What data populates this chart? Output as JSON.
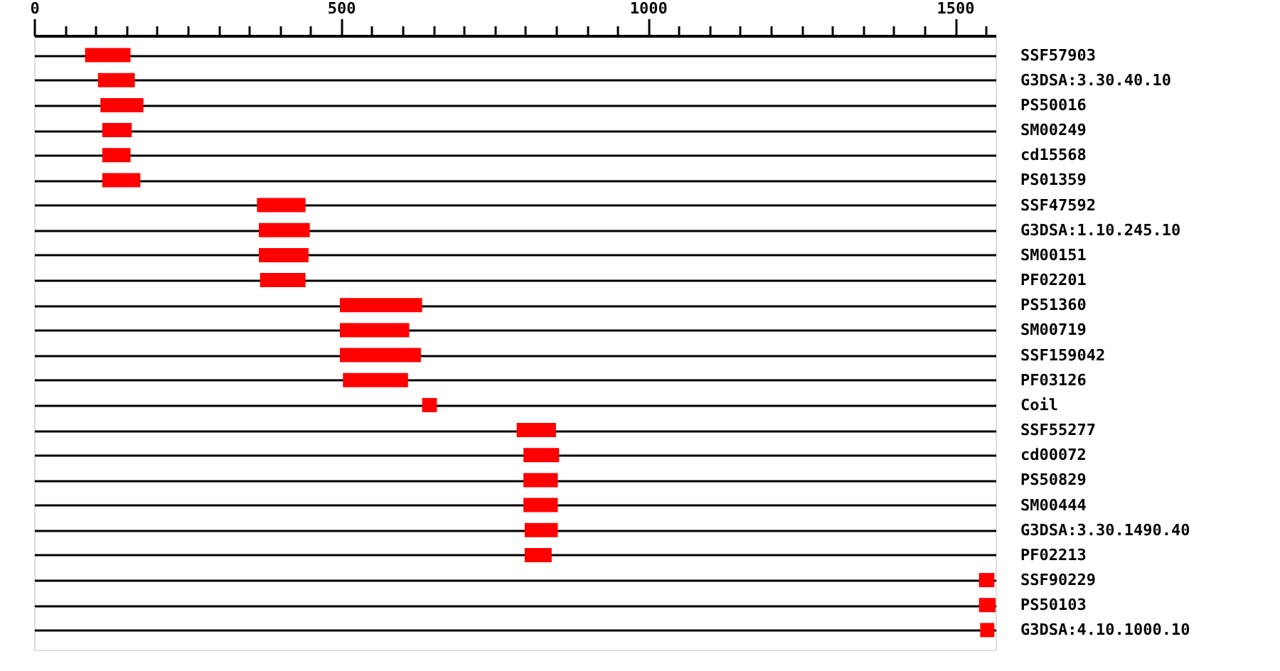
{
  "chart_data": {
    "type": "bar",
    "orientation": "horizontal",
    "categories": [
      "SSF57903",
      "G3DSA:3.30.40.10",
      "PS50016",
      "SM00249",
      "cd15568",
      "PS01359",
      "SSF47592",
      "G3DSA:1.10.245.10",
      "SM00151",
      "PF02201",
      "PS51360",
      "SM00719",
      "SSF159042",
      "PF03126",
      "Coil",
      "SSF55277",
      "cd00072",
      "PS50829",
      "SM00444",
      "G3DSA:3.30.1490.40",
      "PF02213",
      "SSF90229",
      "PS50103",
      "G3DSA:4.10.1000.10"
    ],
    "base": [
      83,
      104,
      108,
      111,
      111,
      111,
      363,
      366,
      366,
      368,
      498,
      498,
      498,
      503,
      632,
      786,
      797,
      797,
      797,
      799,
      799,
      1539,
      1539,
      1541
    ],
    "values": [
      74,
      60,
      70,
      48,
      46,
      62,
      79,
      83,
      81,
      74,
      134,
      113,
      132,
      106,
      24,
      64,
      58,
      56,
      56,
      54,
      44,
      25,
      27,
      23
    ],
    "color": "#ff0000",
    "xlim": [
      0,
      1566
    ],
    "xticks": [
      0,
      {
        "value": 50,
        "label": null
      },
      {
        "value": 100,
        "label": null
      },
      {
        "value": 150,
        "label": null
      },
      {
        "value": 200,
        "label": null
      },
      {
        "value": 250,
        "label": null
      },
      {
        "value": 300,
        "label": null
      },
      {
        "value": 350,
        "label": null
      },
      {
        "value": 400,
        "label": null
      },
      {
        "value": 450,
        "label": null
      },
      500,
      {
        "value": 550,
        "label": null
      },
      {
        "value": 600,
        "label": null
      },
      {
        "value": 650,
        "label": null
      },
      {
        "value": 700,
        "label": null
      },
      {
        "value": 750,
        "label": null
      },
      {
        "value": 800,
        "label": null
      },
      {
        "value": 850,
        "label": null
      },
      {
        "value": 900,
        "label": null
      },
      {
        "value": 950,
        "label": null
      },
      1000,
      {
        "value": 1050,
        "label": null
      },
      {
        "value": 1100,
        "label": null
      },
      {
        "value": 1150,
        "label": null
      },
      {
        "value": 1200,
        "label": null
      },
      {
        "value": 1250,
        "label": null
      },
      {
        "value": 1300,
        "label": null
      },
      {
        "value": 1350,
        "label": null
      },
      {
        "value": 1400,
        "label": null
      },
      {
        "value": 1450,
        "label": null
      },
      1500,
      {
        "value": 1550,
        "label": null
      }
    ],
    "grid": "y"
  }
}
